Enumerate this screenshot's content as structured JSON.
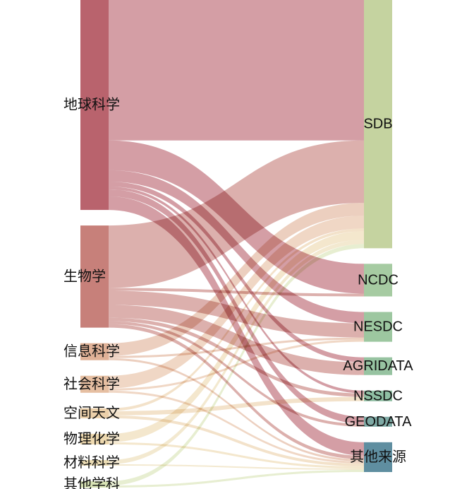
{
  "chart_data": {
    "type": "sankey",
    "sources": [
      {
        "id": "earth",
        "label": "地球科学",
        "color": "#b9636d"
      },
      {
        "id": "bio",
        "label": "生物学",
        "color": "#c7807a"
      },
      {
        "id": "info",
        "label": "信息科学",
        "color": "#e0b197"
      },
      {
        "id": "soc",
        "label": "社会科学",
        "color": "#e6bfa2"
      },
      {
        "id": "space",
        "label": "空间天文",
        "color": "#ecd0aa"
      },
      {
        "id": "phys",
        "label": "物理化学",
        "color": "#eed9af"
      },
      {
        "id": "mat",
        "label": "材料科学",
        "color": "#ebdcb3"
      },
      {
        "id": "other",
        "label": "其他学科",
        "color": "#d8e3b5"
      }
    ],
    "targets": [
      {
        "id": "SDB",
        "label": "SDB",
        "color": "#c5d3a0"
      },
      {
        "id": "NCDC",
        "label": "NCDC",
        "color": "#a6cba2"
      },
      {
        "id": "NESDC",
        "label": "NESDC",
        "color": "#9dc7a0"
      },
      {
        "id": "AGRIDATA",
        "label": "AGRIDATA",
        "color": "#97c3a1"
      },
      {
        "id": "NSSDC",
        "label": "NSSDC",
        "color": "#8fbfa3"
      },
      {
        "id": "GEODATA",
        "label": "GEODATA",
        "color": "#7eaaa5"
      },
      {
        "id": "OTHERS",
        "label": "其他来源",
        "color": "#5f8ea0"
      }
    ],
    "links": [
      {
        "source": "earth",
        "target": "SDB",
        "value": 198
      },
      {
        "source": "earth",
        "target": "NCDC",
        "value": 42
      },
      {
        "source": "earth",
        "target": "NESDC",
        "value": 16
      },
      {
        "source": "earth",
        "target": "AGRIDATA",
        "value": 7
      },
      {
        "source": "earth",
        "target": "NSSDC",
        "value": 4
      },
      {
        "source": "earth",
        "target": "GEODATA",
        "value": 10
      },
      {
        "source": "earth",
        "target": "OTHERS",
        "value": 19
      },
      {
        "source": "bio",
        "target": "SDB",
        "value": 88
      },
      {
        "source": "bio",
        "target": "NCDC",
        "value": 4
      },
      {
        "source": "bio",
        "target": "NESDC",
        "value": 20
      },
      {
        "source": "bio",
        "target": "AGRIDATA",
        "value": 18
      },
      {
        "source": "bio",
        "target": "NSSDC",
        "value": 5
      },
      {
        "source": "bio",
        "target": "GEODATA",
        "value": 4
      },
      {
        "source": "bio",
        "target": "OTHERS",
        "value": 5
      },
      {
        "source": "info",
        "target": "SDB",
        "value": 18
      },
      {
        "source": "info",
        "target": "NESDC",
        "value": 3
      },
      {
        "source": "info",
        "target": "OTHERS",
        "value": 3
      },
      {
        "source": "soc",
        "target": "SDB",
        "value": 18
      },
      {
        "source": "soc",
        "target": "NESDC",
        "value": 3
      },
      {
        "source": "soc",
        "target": "OTHERS",
        "value": 3
      },
      {
        "source": "space",
        "target": "SDB",
        "value": 4
      },
      {
        "source": "space",
        "target": "NSSDC",
        "value": 6
      },
      {
        "source": "space",
        "target": "OTHERS",
        "value": 4
      },
      {
        "source": "phys",
        "target": "SDB",
        "value": 12
      },
      {
        "source": "phys",
        "target": "OTHERS",
        "value": 3
      },
      {
        "source": "mat",
        "target": "SDB",
        "value": 6
      },
      {
        "source": "mat",
        "target": "OTHERS",
        "value": 2
      },
      {
        "source": "other",
        "target": "SDB",
        "value": 6
      },
      {
        "source": "other",
        "target": "OTHERS",
        "value": 3
      }
    ]
  }
}
